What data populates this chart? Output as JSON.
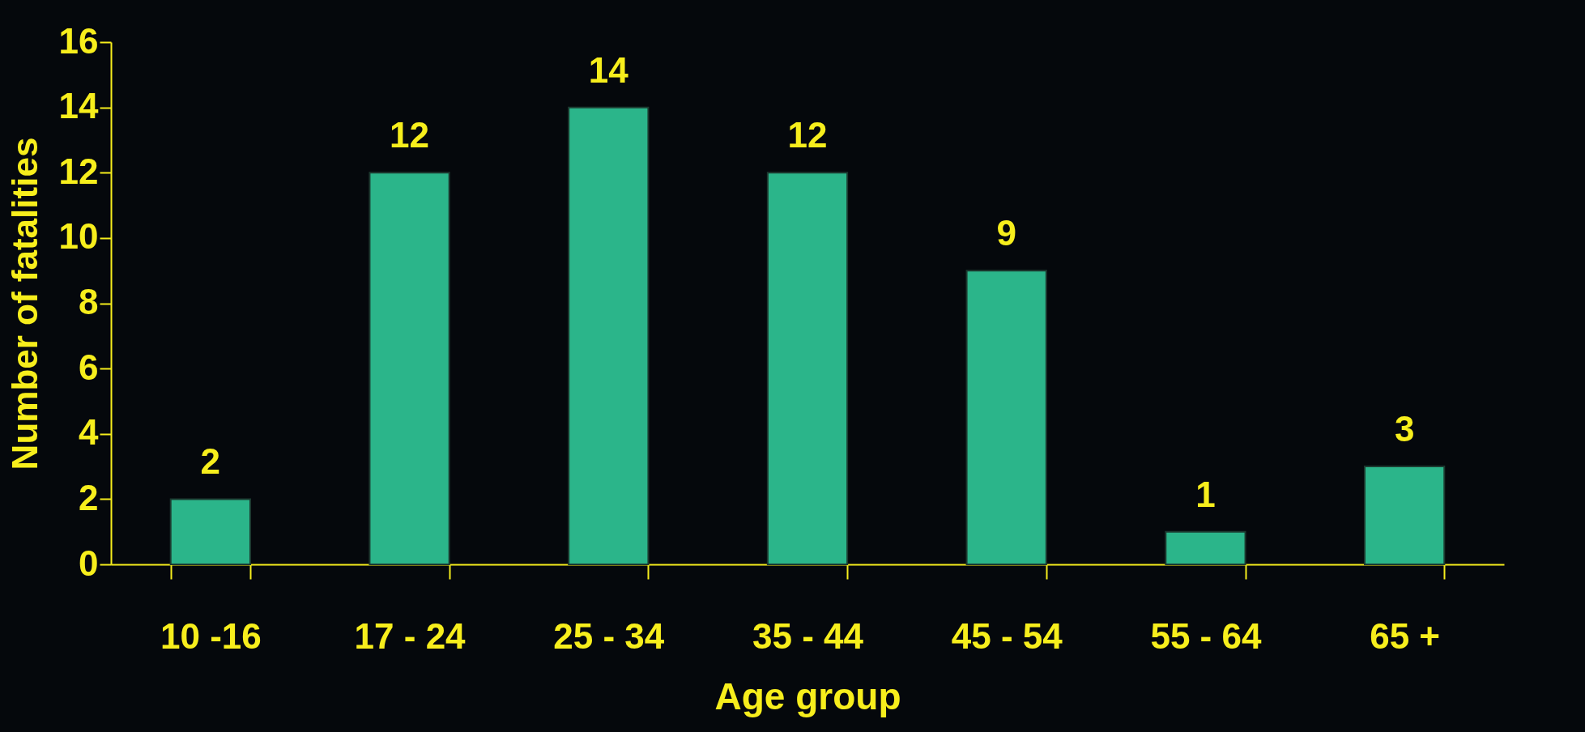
{
  "chart_data": {
    "type": "bar",
    "xlabel": "Age group",
    "ylabel": "Number of fatalities",
    "categories": [
      "10 -16",
      "17 - 24",
      "25 - 34",
      "35 - 44",
      "45 - 54",
      "55 - 64",
      "65 +"
    ],
    "values": [
      2,
      12,
      14,
      12,
      9,
      1,
      3
    ],
    "color": "#2bb58a",
    "ylim": [
      0,
      16
    ],
    "yticks": [
      0,
      2,
      4,
      6,
      8,
      10,
      12,
      14,
      16
    ],
    "grid": false,
    "data_labels": true
  }
}
